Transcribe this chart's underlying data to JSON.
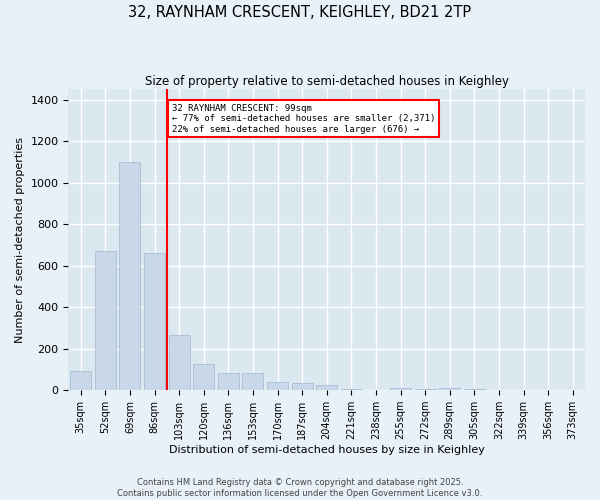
{
  "title": "32, RAYNHAM CRESCENT, KEIGHLEY, BD21 2TP",
  "subtitle": "Size of property relative to semi-detached houses in Keighley",
  "xlabel": "Distribution of semi-detached houses by size in Keighley",
  "ylabel": "Number of semi-detached properties",
  "categories": [
    "35sqm",
    "52sqm",
    "69sqm",
    "86sqm",
    "103sqm",
    "120sqm",
    "136sqm",
    "153sqm",
    "170sqm",
    "187sqm",
    "204sqm",
    "221sqm",
    "238sqm",
    "255sqm",
    "272sqm",
    "289sqm",
    "305sqm",
    "322sqm",
    "339sqm",
    "356sqm",
    "373sqm"
  ],
  "values": [
    93,
    670,
    1100,
    660,
    265,
    128,
    85,
    83,
    42,
    37,
    27,
    8,
    2,
    13,
    4,
    11,
    4,
    1,
    0,
    0,
    0
  ],
  "bar_color": "#c8d8e8",
  "bar_edgecolor": "#a0b8d0",
  "property_label": "32 RAYNHAM CRESCENT: 99sqm",
  "pct_smaller": "77%",
  "n_smaller": "2,371",
  "pct_larger": "22%",
  "n_larger": "676",
  "line_color": "red",
  "box_edgecolor": "red",
  "ylim": [
    0,
    1450
  ],
  "yticks": [
    0,
    200,
    400,
    600,
    800,
    1000,
    1200,
    1400
  ],
  "background_color": "#dce8f0",
  "fig_background_color": "#e8f0f8",
  "grid_color": "#ffffff",
  "footer_line1": "Contains HM Land Registry data © Crown copyright and database right 2025.",
  "footer_line2": "Contains public sector information licensed under the Open Government Licence v3.0."
}
